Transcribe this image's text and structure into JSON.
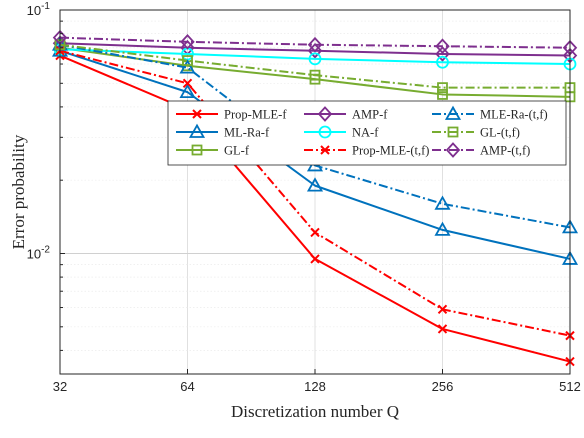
{
  "chart_data": {
    "type": "line",
    "xlabel": "Discretization number Q",
    "ylabel": "Error probability",
    "x": [
      32,
      64,
      128,
      256,
      512
    ],
    "x_ticks": [
      "32",
      "64",
      "128",
      "256",
      "512"
    ],
    "y_scale": "log",
    "ylim": [
      0.0032,
      0.1
    ],
    "y_ticks": [
      {
        "value": 0.1,
        "base": "10",
        "exp": "-1"
      },
      {
        "value": 0.01,
        "base": "10",
        "exp": "-2"
      }
    ],
    "grid": true,
    "legend_placement": "inside-center-right",
    "legend_columns": 3,
    "series": [
      {
        "name": "Prop-MLE-f",
        "color": "#ff0000",
        "dash": "solid",
        "marker": "x",
        "values": [
          0.065,
          0.039,
          0.0095,
          0.0049,
          0.0036
        ]
      },
      {
        "name": "ML-Ra-f",
        "color": "#0072bd",
        "dash": "solid",
        "marker": "triangle",
        "values": [
          0.068,
          0.046,
          0.019,
          0.0125,
          0.0095
        ]
      },
      {
        "name": "GL-f",
        "color": "#77ac30",
        "dash": "solid",
        "marker": "square",
        "values": [
          0.07,
          0.059,
          0.052,
          0.045,
          0.044
        ]
      },
      {
        "name": "AMP-f",
        "color": "#7e2f8e",
        "dash": "solid",
        "marker": "diamond",
        "values": [
          0.073,
          0.07,
          0.068,
          0.066,
          0.065
        ]
      },
      {
        "name": "NA-f",
        "color": "#00ffff",
        "dash": "solid",
        "marker": "circle",
        "values": [
          0.069,
          0.066,
          0.063,
          0.061,
          0.06
        ]
      },
      {
        "name": "Prop-MLE-(t,f)",
        "color": "#ff0000",
        "dash": "dashdot",
        "marker": "x",
        "values": [
          0.068,
          0.05,
          0.0122,
          0.0059,
          0.0046
        ]
      },
      {
        "name": "MLE-Ra-(t,f)",
        "color": "#0072bd",
        "dash": "dashdot",
        "marker": "triangle",
        "values": [
          0.072,
          0.058,
          0.023,
          0.016,
          0.0128
        ]
      },
      {
        "name": "GL-(t,f)",
        "color": "#77ac30",
        "dash": "dashdot",
        "marker": "square",
        "values": [
          0.072,
          0.062,
          0.054,
          0.048,
          0.048
        ]
      },
      {
        "name": "AMP-(t,f)",
        "color": "#7e2f8e",
        "dash": "dashdot",
        "marker": "diamond",
        "values": [
          0.077,
          0.074,
          0.072,
          0.071,
          0.07
        ]
      }
    ],
    "legend_order": [
      0,
      3,
      6,
      1,
      4,
      7,
      2,
      5,
      8
    ]
  }
}
